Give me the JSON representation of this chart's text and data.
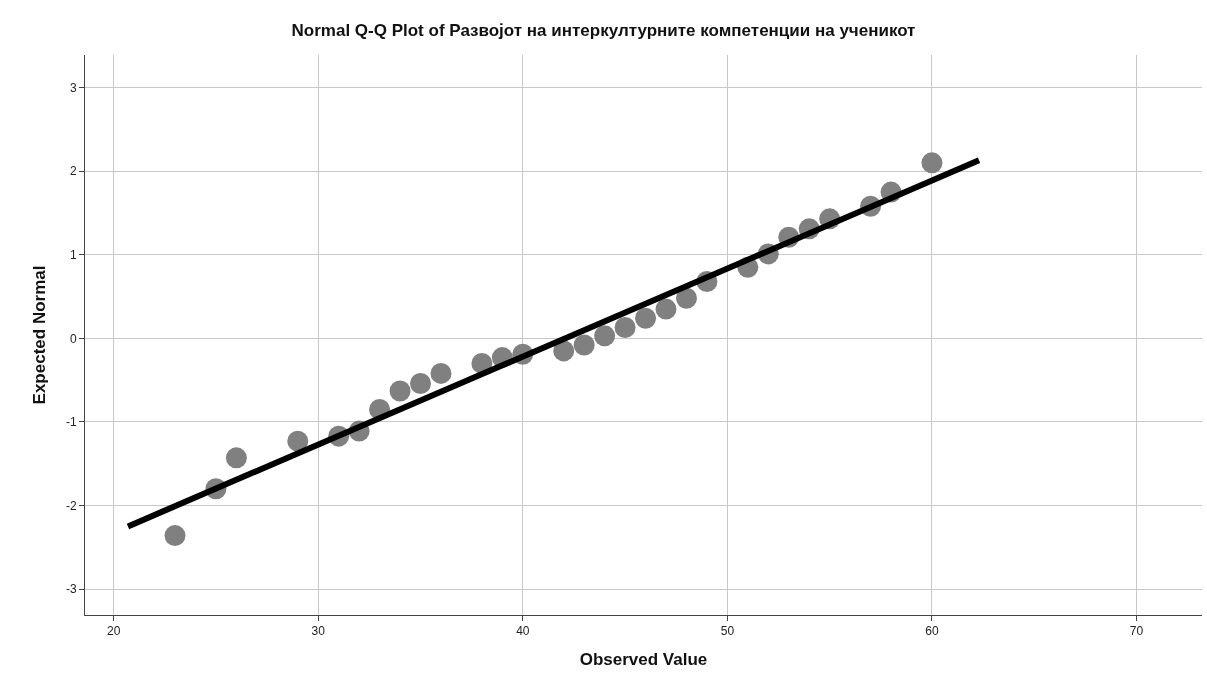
{
  "chart_data": {
    "type": "scatter",
    "title": "Normal Q-Q Plot of Развојот на интеркултурните компетенции на ученикот",
    "xlabel": "Observed Value",
    "ylabel": "Expected Normal",
    "xlim": [
      18.6,
      73.2
    ],
    "ylim": [
      -3.31,
      3.39
    ],
    "xticks": [
      20,
      30,
      40,
      50,
      60,
      70
    ],
    "yticks": [
      -3,
      -2,
      -1,
      0,
      1,
      2,
      3
    ],
    "grid": true,
    "legend": false,
    "series": [
      {
        "marker": "circle",
        "color": "#808080",
        "x": [
          23,
          25,
          26,
          29,
          31,
          32,
          33,
          34,
          35,
          36,
          38,
          39,
          40,
          42,
          43,
          44,
          45,
          46,
          47,
          48,
          49,
          51,
          52,
          53,
          54,
          55,
          57,
          58,
          60
        ],
        "values": [
          -2.36,
          -1.8,
          -1.43,
          -1.23,
          -1.17,
          -1.11,
          -0.85,
          -0.63,
          -0.54,
          -0.42,
          -0.3,
          -0.23,
          -0.19,
          -0.15,
          -0.08,
          0.03,
          0.13,
          0.24,
          0.35,
          0.48,
          0.68,
          0.85,
          1.01,
          1.21,
          1.31,
          1.43,
          1.58,
          1.75,
          2.1
        ]
      },
      {
        "type": "line",
        "marker": "none",
        "line_style": "solid",
        "color": "#000000",
        "x": [
          20.7,
          62.3
        ],
        "values": [
          -2.25,
          2.13
        ]
      }
    ]
  }
}
